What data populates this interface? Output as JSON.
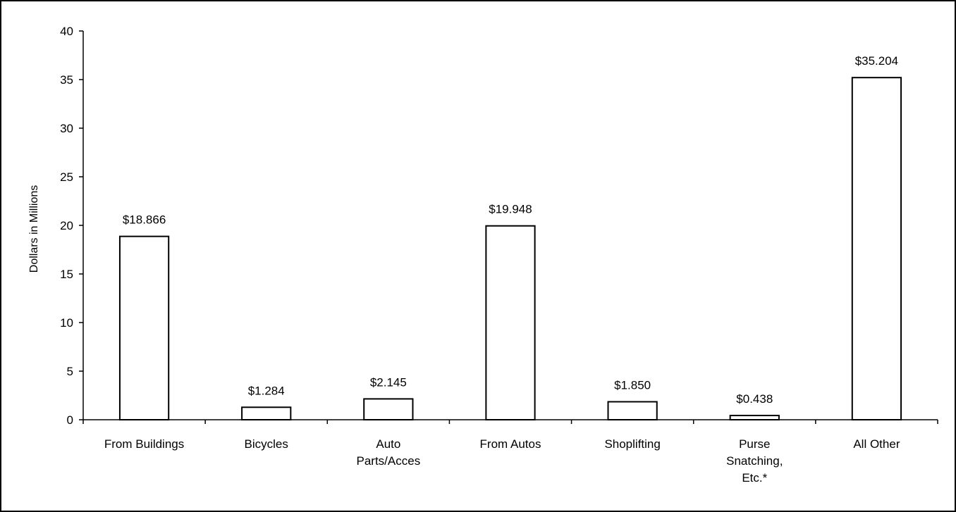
{
  "chart_data": {
    "type": "bar",
    "title": "",
    "xlabel": "",
    "ylabel": "Dollars in Millions",
    "ylim": [
      0,
      40
    ],
    "yticks": [
      0,
      5,
      10,
      15,
      20,
      25,
      30,
      35,
      40
    ],
    "grid": false,
    "legend": "none",
    "categories": [
      [
        "From Buildings"
      ],
      [
        "Bicycles"
      ],
      [
        "Auto",
        "Parts/Acces"
      ],
      [
        "From Autos"
      ],
      [
        "Shoplifting"
      ],
      [
        "Purse",
        "Snatching,",
        "Etc.*"
      ],
      [
        "All Other"
      ]
    ],
    "values": [
      18.866,
      1.284,
      2.145,
      19.948,
      1.85,
      0.438,
      35.204
    ],
    "data_labels": [
      "$18.866",
      "$1.284",
      "$2.145",
      "$19.948",
      "$1.850",
      "$0.438",
      "$35.204"
    ],
    "colors": {
      "bar_fill": "#ffffff",
      "bar_stroke": "#000000",
      "axis": "#000000"
    }
  }
}
